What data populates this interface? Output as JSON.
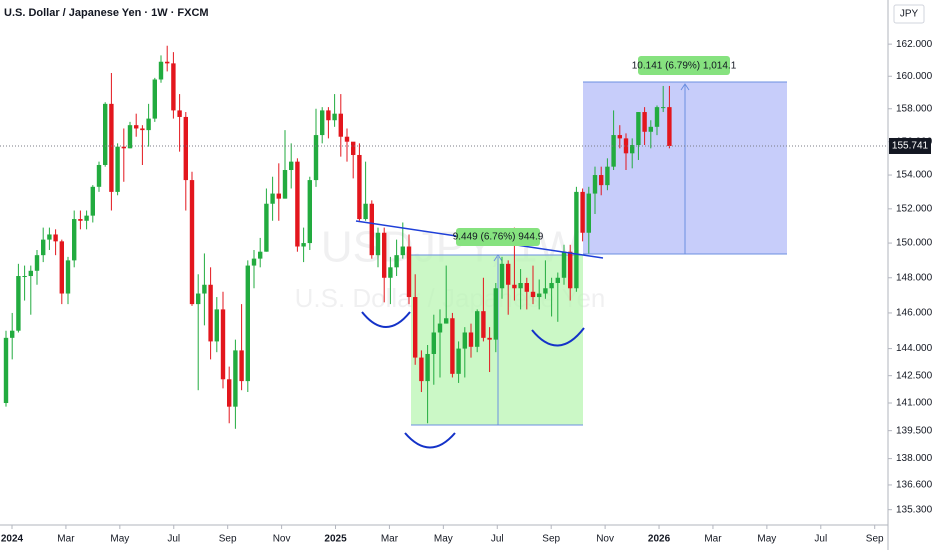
{
  "chart_data": {
    "type": "candlestick",
    "title": "U.S. Dollar / Japanese Yen · 1W · FXCM",
    "watermark": "USDJPY, 1W",
    "watermark_subtitle": "U.S. Dollar / Japanese Yen",
    "y_axis_label": "JPY",
    "log_scale": true,
    "up_color": "#22ab3f",
    "down_color": "#e3161d",
    "ylim": [
      134.5,
      164.79
    ],
    "yticks": [
      {
        "value": 135.3,
        "label": "135.300"
      },
      {
        "value": 136.6,
        "label": "136.600"
      },
      {
        "value": 138,
        "label": "138.000"
      },
      {
        "value": 139.5,
        "label": "139.500"
      },
      {
        "value": 141,
        "label": "141.000"
      },
      {
        "value": 142.5,
        "label": "142.500"
      },
      {
        "value": 144,
        "label": "144.000"
      },
      {
        "value": 146,
        "label": "146.000"
      },
      {
        "value": 148,
        "label": "148.000"
      },
      {
        "value": 150,
        "label": "150.000"
      },
      {
        "value": 152,
        "label": "152.000"
      },
      {
        "value": 154,
        "label": "154.000"
      },
      {
        "value": 156,
        "label": "156.000"
      },
      {
        "value": 158,
        "label": "158.000"
      },
      {
        "value": 160,
        "label": "160.000"
      },
      {
        "value": 162,
        "label": "162.000"
      }
    ],
    "xticks": [
      {
        "value": "2024-01",
        "label": "2024"
      },
      {
        "value": "2024-03",
        "label": "Mar"
      },
      {
        "value": "2024-05",
        "label": "May"
      },
      {
        "value": "2024-07",
        "label": "Jul"
      },
      {
        "value": "2024-09",
        "label": "Sep"
      },
      {
        "value": "2024-11",
        "label": "Nov"
      },
      {
        "value": "2025-01",
        "label": "2025"
      },
      {
        "value": "2025-03",
        "label": "Mar"
      },
      {
        "value": "2025-05",
        "label": "May"
      },
      {
        "value": "2025-07",
        "label": "Jul"
      },
      {
        "value": "2025-09",
        "label": "Sep"
      },
      {
        "value": "2025-11",
        "label": "Nov"
      },
      {
        "value": "2026-01",
        "label": "2026"
      },
      {
        "value": "2026-03",
        "label": "Mar"
      },
      {
        "value": "2026-05",
        "label": "May"
      },
      {
        "value": "2026-07",
        "label": "Jul"
      },
      {
        "value": "2026-09",
        "label": "Sep"
      }
    ],
    "last_price": {
      "value": 155.741,
      "label": "155.741"
    },
    "annotations": [
      {
        "text": "9.449 (6.76%) 944.9"
      },
      {
        "text": "10.141 (6.79%) 1,014.1"
      }
    ],
    "open": [
      141.0,
      144.6,
      145.0,
      148.1,
      148.1,
      148.4,
      149.3,
      150.2,
      150.5,
      150.1,
      147.1,
      149.0,
      151.4,
      151.3,
      151.6,
      153.3,
      154.6,
      158.3,
      153.0,
      155.7,
      155.6,
      157.0,
      156.8,
      156.7,
      157.4,
      159.8,
      160.9,
      160.8,
      157.9,
      157.5,
      153.7,
      146.5,
      147.1,
      147.6,
      144.4,
      146.2,
      142.3,
      140.8,
      143.9,
      142.2,
      148.7,
      149.1,
      149.5,
      152.3,
      152.9,
      152.6,
      154.3,
      154.8,
      149.8,
      150.0,
      153.7,
      156.4,
      157.9,
      157.3,
      157.7,
      156.3,
      156.0,
      155.2,
      151.4,
      152.3,
      149.3,
      150.6,
      148.0,
      148.6,
      149.3,
      149.8,
      146.9,
      143.5,
      142.2,
      143.7,
      144.9,
      145.4,
      145.7,
      142.6,
      144.0,
      144.9,
      144.1,
      146.1,
      144.6,
      144.5,
      147.4,
      148.8,
      147.6,
      147.4,
      147.7,
      147.2,
      146.9,
      147.1,
      147.4,
      147.7,
      148.0,
      149.5,
      147.4,
      153.0,
      150.6,
      152.9,
      154.0,
      153.4,
      154.5,
      156.4,
      156.2,
      155.3,
      155.8,
      157.8,
      156.6,
      156.9,
      158.1,
      158.1
    ],
    "high": [
      145.0,
      146.0,
      148.8,
      148.7,
      148.7,
      149.6,
      150.9,
      150.9,
      150.8,
      150.2,
      149.2,
      151.9,
      151.9,
      151.9,
      153.4,
      154.8,
      158.4,
      160.2,
      155.9,
      156.8,
      157.2,
      157.7,
      157.0,
      158.3,
      159.9,
      161.3,
      161.9,
      161.5,
      158.9,
      157.8,
      154.2,
      148.2,
      149.4,
      148.6,
      146.9,
      147.2,
      143.0,
      144.5,
      146.5,
      149.0,
      149.6,
      150.3,
      153.2,
      153.9,
      154.7,
      156.7,
      155.9,
      155.0,
      150.9,
      153.9,
      158.0,
      158.1,
      158.1,
      158.9,
      158.9,
      156.8,
      155.9,
      155.9,
      154.8,
      152.5,
      150.9,
      150.9,
      149.2,
      150.2,
      151.2,
      150.5,
      148.2,
      143.9,
      144.2,
      145.9,
      146.2,
      148.7,
      146.0,
      144.4,
      145.2,
      145.4,
      146.2,
      148.0,
      145.2,
      147.7,
      149.2,
      149.0,
      150.9,
      148.5,
      148.0,
      148.7,
      147.9,
      149.0,
      148.0,
      148.3,
      149.9,
      149.9,
      153.3,
      153.2,
      153.3,
      154.5,
      154.5,
      155.0,
      157.9,
      157.0,
      156.5,
      156.2,
      157.8,
      158.1,
      157.3,
      158.2,
      159.4,
      159.4
    ],
    "low": [
      140.8,
      143.4,
      144.9,
      146.7,
      145.9,
      147.6,
      148.9,
      149.6,
      149.3,
      146.5,
      146.5,
      148.6,
      150.8,
      150.8,
      151.2,
      153.0,
      154.5,
      151.9,
      152.8,
      153.6,
      155.6,
      156.3,
      154.6,
      155.7,
      157.2,
      159.6,
      160.3,
      157.4,
      155.4,
      151.9,
      146.4,
      141.7,
      145.3,
      143.4,
      143.8,
      141.8,
      139.9,
      139.6,
      141.7,
      141.6,
      147.4,
      148.6,
      149.5,
      151.3,
      151.3,
      152.6,
      153.2,
      149.5,
      148.9,
      149.6,
      153.3,
      155.9,
      156.2,
      156.9,
      155.1,
      154.8,
      153.8,
      151.3,
      151.3,
      149.1,
      148.6,
      146.6,
      146.5,
      148.1,
      149.1,
      146.5,
      143.1,
      141.6,
      139.9,
      142.0,
      142.4,
      145.4,
      142.4,
      142.1,
      142.4,
      143.5,
      143.8,
      144.4,
      142.7,
      143.8,
      146.8,
      145.9,
      146.7,
      146.2,
      146.2,
      146.5,
      146.2,
      146.8,
      145.8,
      145.5,
      147.6,
      146.7,
      147.2,
      150.1,
      149.4,
      151.7,
      152.8,
      153.1,
      154.3,
      155.6,
      154.3,
      154.4,
      154.9,
      155.8,
      155.6,
      156.4,
      157.8,
      155.6
    ],
    "close": [
      144.6,
      145.0,
      148.1,
      148.1,
      148.4,
      149.3,
      150.2,
      150.5,
      150.1,
      147.1,
      149.0,
      151.4,
      151.3,
      151.6,
      153.3,
      154.6,
      158.3,
      153.0,
      155.7,
      155.6,
      157.0,
      156.8,
      156.7,
      157.4,
      159.8,
      160.9,
      160.8,
      157.9,
      157.5,
      153.7,
      146.5,
      147.1,
      147.6,
      144.4,
      146.2,
      142.3,
      140.8,
      143.9,
      142.2,
      148.7,
      149.1,
      149.5,
      152.3,
      152.9,
      152.6,
      154.3,
      154.8,
      149.8,
      150.0,
      153.7,
      156.4,
      157.9,
      157.3,
      157.7,
      156.3,
      156.0,
      155.2,
      151.4,
      152.3,
      149.3,
      150.6,
      148.0,
      148.6,
      149.3,
      149.8,
      146.9,
      143.5,
      142.2,
      143.7,
      144.9,
      145.4,
      145.7,
      142.6,
      144.0,
      144.9,
      144.1,
      146.1,
      144.6,
      144.5,
      147.4,
      148.8,
      147.6,
      147.4,
      147.7,
      147.2,
      146.9,
      147.1,
      147.4,
      147.7,
      148.0,
      149.5,
      147.4,
      153.0,
      150.6,
      152.9,
      154.0,
      153.4,
      154.5,
      156.4,
      156.2,
      155.3,
      155.8,
      157.8,
      156.6,
      156.9,
      158.1,
      158.1,
      155.74
    ]
  }
}
